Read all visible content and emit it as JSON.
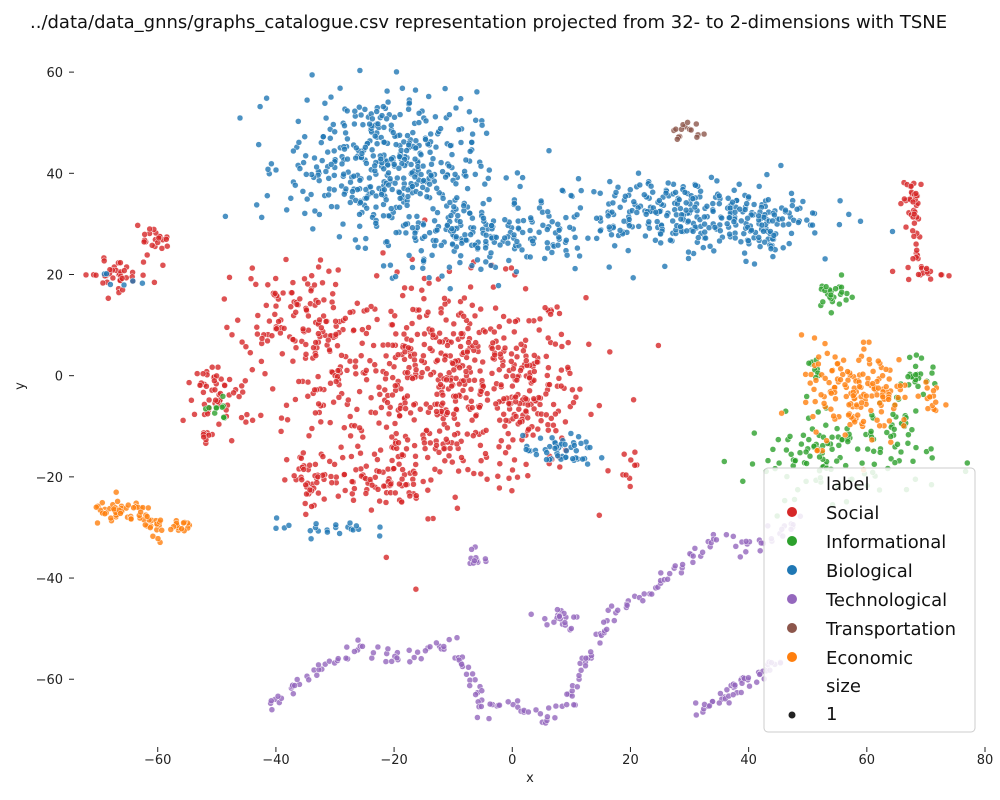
{
  "chart_data": {
    "type": "scatter",
    "title": "../data/data_gnns/graphs_catalogue.csv representation projected from 32- to 2-dimensions with TSNE",
    "xlabel": "x",
    "ylabel": "y",
    "xlim": [
      -74,
      80
    ],
    "ylim": [
      -73,
      62
    ],
    "x_ticks": [
      -60,
      -40,
      -20,
      0,
      20,
      40,
      60,
      80
    ],
    "y_ticks": [
      -60,
      -40,
      -20,
      0,
      20,
      40,
      60
    ],
    "grid": false,
    "legend_position": "bottom-right",
    "legend_title": "label",
    "size_title": "size",
    "size_value": "1",
    "series": [
      {
        "name": "Social",
        "color": "#d62728",
        "clusters": [
          {
            "cx": -10,
            "cy": -2,
            "sx": 11,
            "sy": 10,
            "n": 560
          },
          {
            "cx": -32,
            "cy": 6,
            "sx": 5,
            "sy": 9,
            "n": 120
          },
          {
            "cx": -40,
            "cy": 14,
            "sx": 3,
            "sy": 5,
            "n": 50
          },
          {
            "cx": 2,
            "cy": -5,
            "sx": 4,
            "sy": 6,
            "n": 60
          },
          {
            "cx": -22,
            "cy": -21,
            "sx": 4,
            "sy": 2.5,
            "n": 70
          },
          {
            "cx": -34,
            "cy": -21,
            "sx": 2,
            "sy": 3,
            "n": 40
          },
          {
            "cx": -49,
            "cy": -5,
            "sx": 3,
            "sy": 3,
            "n": 45
          },
          {
            "cx": -51,
            "cy": 0,
            "sx": 1.2,
            "sy": 1,
            "n": 15
          },
          {
            "cx": -52,
            "cy": -12,
            "sx": 0.4,
            "sy": 0.8,
            "n": 8
          },
          {
            "cx": -67,
            "cy": 20,
            "sx": 3,
            "sy": 1.5,
            "n": 40
          },
          {
            "cx": -61,
            "cy": 27,
            "sx": 1.5,
            "sy": 1.2,
            "n": 22
          },
          {
            "cx": 68,
            "cy": 35,
            "sx": 1,
            "sy": 2,
            "n": 25
          },
          {
            "cx": 68.5,
            "cy": 26,
            "sx": 0.5,
            "sy": 4,
            "n": 20
          },
          {
            "cx": 70,
            "cy": 20.5,
            "sx": 1.5,
            "sy": 0.7,
            "n": 15
          },
          {
            "cx": 20,
            "cy": -17,
            "sx": 0.6,
            "sy": 1.5,
            "n": 8
          }
        ]
      },
      {
        "name": "Informational",
        "color": "#2ca02c",
        "clusters": [
          {
            "cx": 55,
            "cy": -16,
            "sx": 8,
            "sy": 4,
            "n": 120
          },
          {
            "cx": 54,
            "cy": 16,
            "sx": 1.5,
            "sy": 1.5,
            "n": 25
          },
          {
            "cx": 69,
            "cy": 0,
            "sx": 1.5,
            "sy": 1.5,
            "n": 18
          },
          {
            "cx": 66,
            "cy": -8,
            "sx": 2,
            "sy": 5,
            "n": 25
          },
          {
            "cx": -50,
            "cy": -7,
            "sx": 1.2,
            "sy": 1,
            "n": 10
          },
          {
            "cx": 51,
            "cy": 0,
            "sx": 1,
            "sy": 3,
            "n": 10
          }
        ]
      },
      {
        "name": "Biological",
        "color": "#1f77b4",
        "clusters": [
          {
            "cx": -22,
            "cy": 42,
            "sx": 8,
            "sy": 7,
            "n": 420
          },
          {
            "cx": -5,
            "cy": 28,
            "sx": 9,
            "sy": 4,
            "n": 200
          },
          {
            "cx": 28,
            "cy": 32,
            "sx": 11,
            "sy": 3.5,
            "n": 300
          },
          {
            "cx": 42,
            "cy": 29,
            "sx": 3,
            "sy": 3,
            "n": 60
          },
          {
            "cx": 8,
            "cy": -15,
            "sx": 3,
            "sy": 1.5,
            "n": 50
          },
          {
            "cx": -32,
            "cy": -30,
            "sx": 4,
            "sy": 1,
            "n": 22
          },
          {
            "cx": -66,
            "cy": 19,
            "sx": 2,
            "sy": 1,
            "n": 6
          }
        ]
      },
      {
        "name": "Technological",
        "color": "#9467bd",
        "clusters": [],
        "path": [
          [
            -41,
            -66
          ],
          [
            -38,
            -62
          ],
          [
            -32,
            -57
          ],
          [
            -26,
            -54
          ],
          [
            -20,
            -56
          ],
          [
            -14,
            -54
          ],
          [
            -10,
            -53
          ],
          [
            -7,
            -60
          ],
          [
            -5,
            -66
          ],
          [
            -2,
            -64
          ],
          [
            2,
            -66
          ],
          [
            6,
            -68
          ],
          [
            10,
            -64
          ],
          [
            12,
            -58
          ],
          [
            16,
            -48
          ],
          [
            22,
            -44
          ],
          [
            26,
            -40
          ],
          [
            30,
            -36
          ],
          [
            34,
            -32
          ],
          [
            40,
            -34
          ],
          [
            46,
            -30
          ],
          [
            49,
            -28
          ]
        ],
        "path2": [
          [
            32,
            -66
          ],
          [
            36,
            -63
          ],
          [
            40,
            -60
          ],
          [
            43,
            -58
          ],
          [
            45,
            -56
          ]
        ],
        "blob": {
          "cx": 8,
          "cy": -48,
          "sx": 2,
          "sy": 1.5,
          "n": 20
        },
        "blob2": {
          "cx": -6,
          "cy": -36,
          "sx": 0.6,
          "sy": 1.2,
          "n": 12
        }
      },
      {
        "name": "Transportation",
        "color": "#8c564b",
        "clusters": [
          {
            "cx": 30,
            "cy": 48,
            "sx": 1.5,
            "sy": 1,
            "n": 15
          }
        ]
      },
      {
        "name": "Economic",
        "color": "#ff7f0e",
        "clusters": [
          {
            "cx": 57,
            "cy": -3,
            "sx": 4,
            "sy": 5,
            "n": 120
          },
          {
            "cx": 63,
            "cy": -5,
            "sx": 3,
            "sy": 3,
            "n": 40
          },
          {
            "cx": 71,
            "cy": -5,
            "sx": 1.5,
            "sy": 1.5,
            "n": 15
          },
          {
            "cx": -66,
            "cy": -27,
            "sx": 2.5,
            "sy": 1.2,
            "n": 45
          },
          {
            "cx": -61,
            "cy": -30,
            "sx": 1.5,
            "sy": 1.5,
            "n": 20
          },
          {
            "cx": -56,
            "cy": -30,
            "sx": 1.2,
            "sy": 0.8,
            "n": 15
          }
        ]
      }
    ]
  }
}
